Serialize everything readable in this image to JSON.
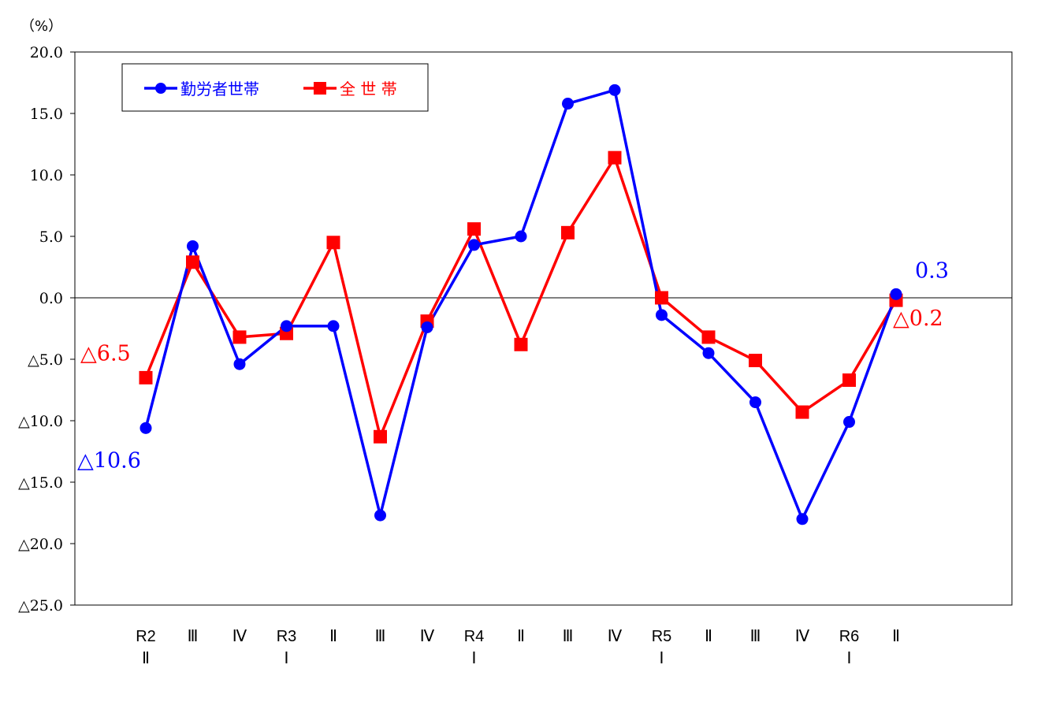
{
  "chart_data": {
    "type": "line",
    "unit_label": "（%）",
    "ylim": [
      -25,
      20
    ],
    "y_ticks": [
      {
        "value": 20,
        "label": "20.0"
      },
      {
        "value": 15,
        "label": "15.0"
      },
      {
        "value": 10,
        "label": "10.0"
      },
      {
        "value": 5,
        "label": "5.0"
      },
      {
        "value": 0,
        "label": "0.0"
      },
      {
        "value": -5,
        "label": "△5.0"
      },
      {
        "value": -10,
        "label": "△10.0"
      },
      {
        "value": -15,
        "label": "△15.0"
      },
      {
        "value": -20,
        "label": "△20.0"
      },
      {
        "value": -25,
        "label": "△25.0"
      }
    ],
    "categories": [
      [
        "R2",
        "Ⅱ"
      ],
      [
        "Ⅲ"
      ],
      [
        "Ⅳ"
      ],
      [
        "R3",
        "Ⅰ"
      ],
      [
        "Ⅱ"
      ],
      [
        "Ⅲ"
      ],
      [
        "Ⅳ"
      ],
      [
        "R4",
        "Ⅰ"
      ],
      [
        "Ⅱ"
      ],
      [
        "Ⅲ"
      ],
      [
        "Ⅳ"
      ],
      [
        "R5",
        "Ⅰ"
      ],
      [
        "Ⅱ"
      ],
      [
        "Ⅲ"
      ],
      [
        "Ⅳ"
      ],
      [
        "R6",
        "Ⅰ"
      ],
      [
        "Ⅱ"
      ]
    ],
    "grid": false,
    "zero_line": true,
    "legend_position": "top-left",
    "series": [
      {
        "name": "勤労者世帯",
        "color": "#0000ff",
        "marker": "circle",
        "values": [
          -10.6,
          4.2,
          -5.4,
          -2.3,
          -2.3,
          -17.7,
          -2.4,
          4.3,
          5.0,
          15.8,
          16.9,
          -1.4,
          -4.5,
          -8.5,
          -18.0,
          -10.1,
          0.3
        ]
      },
      {
        "name": "全 世 帯",
        "color": "#ff0000",
        "marker": "square",
        "values": [
          -6.5,
          2.9,
          -3.2,
          -2.9,
          4.5,
          -11.3,
          -1.9,
          5.6,
          -3.8,
          5.3,
          11.4,
          0.0,
          -3.2,
          -5.1,
          -9.3,
          -6.7,
          -0.2
        ]
      }
    ],
    "annotations": [
      {
        "text": "△6.5",
        "series": 1,
        "point": 0,
        "color": "#ff0000"
      },
      {
        "text": "△10.6",
        "series": 0,
        "point": 0,
        "color": "#0000ff"
      },
      {
        "text": "0.3",
        "series": 0,
        "point": 16,
        "color": "#0000ff"
      },
      {
        "text": "△0.2",
        "series": 1,
        "point": 16,
        "color": "#ff0000"
      }
    ]
  }
}
